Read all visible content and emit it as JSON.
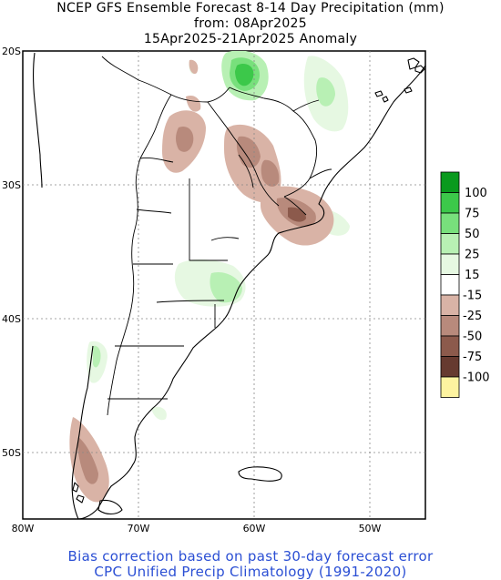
{
  "title": {
    "line1": "NCEP GFS Ensemble Forecast 8-14 Day Precipitation (mm)",
    "line2": "from: 08Apr2025",
    "line3": "15Apr2025-21Apr2025 Anomaly"
  },
  "axes": {
    "lat_labels": [
      "20S",
      "30S",
      "40S",
      "50S"
    ],
    "lon_labels": [
      "80W",
      "70W",
      "60W",
      "50W"
    ]
  },
  "legend": {
    "labels": [
      "100",
      "75",
      "50",
      "25",
      "15",
      "-15",
      "-25",
      "-50",
      "-75",
      "-100"
    ],
    "colors": [
      "#0a9a1e",
      "#3cc84a",
      "#78e07c",
      "#b8f0b4",
      "#e6f8e2",
      "#ffffff",
      "#d9b3a6",
      "#b88a7c",
      "#8c5a4c",
      "#663a30",
      "#fdf3a0"
    ]
  },
  "footer": {
    "line1": "Bias correction based on past 30-day forecast error",
    "line2": "CPC Unified Precip Climatology (1991-2020)"
  }
}
